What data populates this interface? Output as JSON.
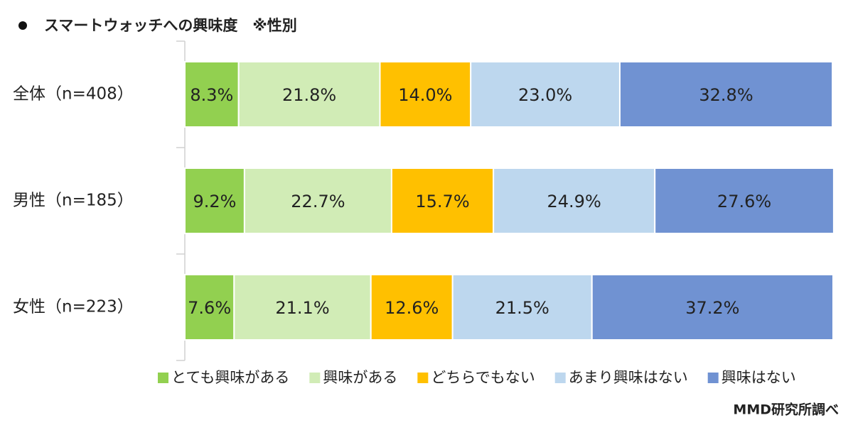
{
  "chart_data": {
    "type": "stacked-bar-horizontal",
    "title": "スマートウォッチへの興味度　※性別",
    "source": "MMD研究所調べ",
    "categories": [
      "全体（n=408）",
      "男性（n=185）",
      "女性（n=223）"
    ],
    "xlim": [
      0,
      100
    ],
    "series": [
      {
        "name": "とても興味がある",
        "color": "#92d050",
        "values": [
          8.3,
          9.2,
          7.6
        ],
        "value_labels": [
          "8.3%",
          "9.2%",
          "7.6%"
        ]
      },
      {
        "name": "興味がある",
        "color": "#d1ecb6",
        "values": [
          21.8,
          22.7,
          21.1
        ],
        "value_labels": [
          "21.8%",
          "22.7%",
          "21.1%"
        ]
      },
      {
        "name": "どちらでもない",
        "color": "#ffc000",
        "values": [
          14.0,
          15.7,
          12.6
        ],
        "value_labels": [
          "14.0%",
          "15.7%",
          "12.6%"
        ]
      },
      {
        "name": "あまり興味はない",
        "color": "#bdd7ee",
        "values": [
          23.0,
          24.9,
          21.5
        ],
        "value_labels": [
          "23.0%",
          "24.9%",
          "21.5%"
        ]
      },
      {
        "name": "興味はない",
        "color": "#7092d2",
        "values": [
          32.8,
          27.6,
          37.2
        ],
        "value_labels": [
          "32.8%",
          "27.6%",
          "37.2%"
        ]
      }
    ]
  }
}
